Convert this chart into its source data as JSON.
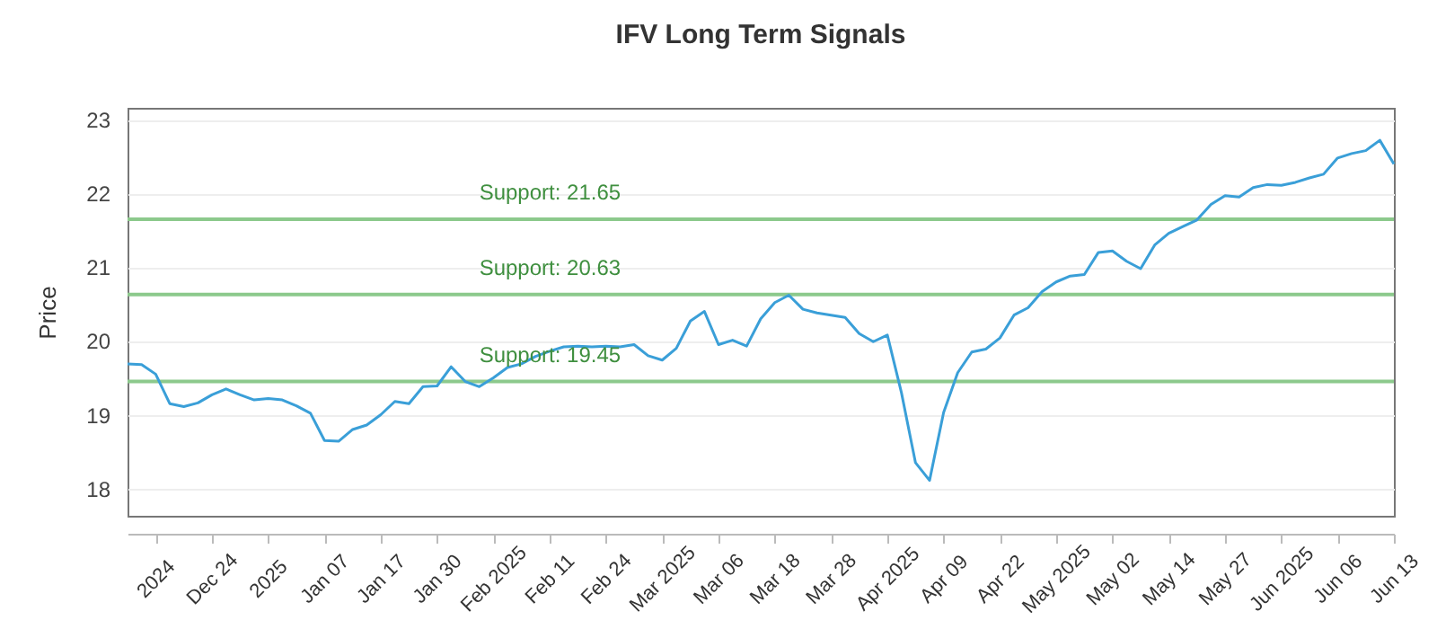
{
  "chart_data": {
    "type": "line",
    "title": "IFV Long Term Signals",
    "ylabel": "Price",
    "categories": [
      null,
      null,
      "2024",
      null,
      null,
      null,
      "Dec 24",
      null,
      null,
      null,
      "2025",
      null,
      null,
      null,
      "Jan 07",
      null,
      null,
      null,
      "Jan 17",
      null,
      null,
      null,
      "Jan 30",
      null,
      null,
      null,
      "Feb 2025",
      null,
      null,
      null,
      "Feb 11",
      null,
      null,
      null,
      "Feb 24",
      null,
      null,
      null,
      "Mar 2025",
      null,
      null,
      null,
      "Mar 06",
      null,
      null,
      null,
      "Mar 18",
      null,
      null,
      null,
      "Mar 28",
      null,
      null,
      null,
      "Apr 2025",
      null,
      null,
      null,
      "Apr 09",
      null,
      null,
      null,
      "Apr 22",
      null,
      null,
      null,
      "May 2025",
      null,
      null,
      null,
      "May 02",
      null,
      null,
      null,
      "May 14",
      null,
      null,
      null,
      "May 27",
      null,
      null,
      null,
      "Jun 2025",
      null,
      null,
      null,
      "Jun 06",
      null,
      null,
      null,
      "Jun 13"
    ],
    "series": [
      {
        "color": "#3a9fd8",
        "values": [
          19.69,
          19.68,
          19.55,
          19.15,
          19.11,
          19.16,
          19.27,
          19.35,
          19.27,
          19.2,
          19.22,
          19.2,
          19.12,
          19.02,
          18.65,
          18.64,
          18.8,
          18.86,
          19.0,
          19.18,
          19.15,
          19.38,
          19.39,
          19.65,
          19.45,
          19.38,
          19.5,
          19.64,
          19.69,
          19.79,
          19.86,
          19.92,
          19.93,
          19.92,
          19.93,
          19.92,
          19.95,
          19.8,
          19.74,
          19.9,
          20.27,
          20.4,
          19.95,
          20.01,
          19.93,
          20.3,
          20.52,
          20.62,
          20.43,
          20.38,
          20.35,
          20.32,
          20.1,
          19.99,
          20.08,
          19.3,
          18.35,
          18.11,
          19.03,
          19.57,
          19.85,
          19.89,
          20.04,
          20.35,
          20.45,
          20.67,
          20.8,
          20.88,
          20.9,
          21.2,
          21.22,
          21.08,
          20.98,
          21.3,
          21.46,
          21.55,
          21.64,
          21.85,
          21.97,
          21.95,
          22.08,
          22.12,
          22.11,
          22.15,
          22.21,
          22.26,
          22.48,
          22.54,
          22.58,
          22.72,
          22.4
        ]
      }
    ],
    "ylim": [
      17.63,
      23.16
    ],
    "yticks": [
      18,
      19,
      20,
      21,
      22,
      23
    ],
    "grid": "y",
    "line_style": "solid",
    "ref_lines": [
      {
        "axis": "y",
        "value": 21.65,
        "label": "Support: 21.65",
        "color": "#8cc98c"
      },
      {
        "axis": "y",
        "value": 20.63,
        "label": "Support: 20.63",
        "color": "#8cc98c"
      },
      {
        "axis": "y",
        "value": 19.45,
        "label": "Support: 19.45",
        "color": "#8cc98c"
      }
    ]
  }
}
